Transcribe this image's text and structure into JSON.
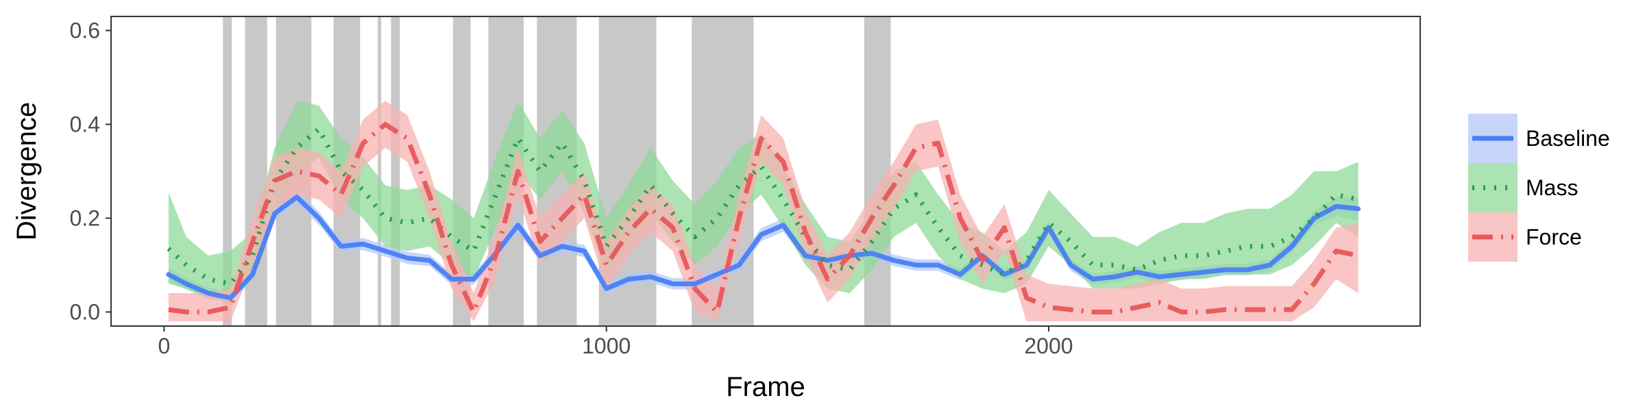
{
  "chart_data": {
    "type": "line",
    "xlabel": "Frame",
    "ylabel": "Divergence",
    "xlim": [
      -120,
      2840
    ],
    "ylim": [
      -0.03,
      0.63
    ],
    "x_ticks": [
      0,
      1000,
      2000
    ],
    "x_tick_labels": [
      "0",
      "1000",
      "2000"
    ],
    "y_ticks": [
      0.0,
      0.2,
      0.4,
      0.6
    ],
    "y_tick_labels": [
      "0.0",
      "0.2",
      "0.4",
      "0.6"
    ],
    "grid": false,
    "legend_position": "right",
    "shaded_intervals": [
      [
        133,
        153
      ],
      [
        183,
        233
      ],
      [
        253,
        333
      ],
      [
        383,
        443
      ],
      [
        483,
        491
      ],
      [
        513,
        533
      ],
      [
        653,
        693
      ],
      [
        733,
        813
      ],
      [
        843,
        933
      ],
      [
        983,
        1113
      ],
      [
        1193,
        1333
      ],
      [
        1583,
        1643
      ]
    ],
    "x": [
      10,
      50,
      100,
      150,
      200,
      250,
      300,
      350,
      400,
      450,
      500,
      550,
      600,
      650,
      700,
      750,
      800,
      850,
      900,
      950,
      1000,
      1050,
      1100,
      1150,
      1200,
      1250,
      1300,
      1350,
      1400,
      1450,
      1500,
      1550,
      1600,
      1650,
      1700,
      1750,
      1800,
      1850,
      1900,
      1950,
      2000,
      2050,
      2100,
      2150,
      2200,
      2250,
      2300,
      2350,
      2400,
      2450,
      2500,
      2550,
      2600,
      2650,
      2700
    ],
    "series": [
      {
        "name": "Baseline",
        "color": "#4a7ff5",
        "band_color": "#b4c8f5",
        "dash": "solid",
        "values": [
          0.08,
          0.06,
          0.04,
          0.03,
          0.08,
          0.21,
          0.245,
          0.2,
          0.14,
          0.145,
          0.13,
          0.115,
          0.11,
          0.07,
          0.07,
          0.125,
          0.185,
          0.12,
          0.14,
          0.13,
          0.05,
          0.07,
          0.075,
          0.06,
          0.06,
          0.08,
          0.1,
          0.165,
          0.185,
          0.12,
          0.11,
          0.12,
          0.125,
          0.11,
          0.1,
          0.1,
          0.08,
          0.12,
          0.08,
          0.1,
          0.18,
          0.1,
          0.07,
          0.075,
          0.085,
          0.075,
          0.08,
          0.085,
          0.09,
          0.09,
          0.1,
          0.14,
          0.2,
          0.225,
          0.22
        ],
        "lower": [
          0.065,
          0.048,
          0.028,
          0.02,
          0.068,
          0.196,
          0.23,
          0.186,
          0.128,
          0.132,
          0.118,
          0.102,
          0.098,
          0.058,
          0.058,
          0.112,
          0.171,
          0.108,
          0.127,
          0.117,
          0.038,
          0.058,
          0.063,
          0.048,
          0.048,
          0.068,
          0.087,
          0.151,
          0.171,
          0.108,
          0.098,
          0.108,
          0.112,
          0.098,
          0.088,
          0.088,
          0.068,
          0.108,
          0.068,
          0.088,
          0.166,
          0.088,
          0.058,
          0.063,
          0.073,
          0.063,
          0.068,
          0.073,
          0.078,
          0.078,
          0.088,
          0.127,
          0.185,
          0.205,
          0.195
        ],
        "upper": [
          0.095,
          0.072,
          0.052,
          0.04,
          0.092,
          0.224,
          0.26,
          0.214,
          0.152,
          0.158,
          0.142,
          0.128,
          0.122,
          0.082,
          0.082,
          0.138,
          0.199,
          0.132,
          0.153,
          0.143,
          0.062,
          0.082,
          0.087,
          0.072,
          0.072,
          0.092,
          0.113,
          0.179,
          0.199,
          0.132,
          0.122,
          0.132,
          0.138,
          0.122,
          0.112,
          0.112,
          0.092,
          0.132,
          0.092,
          0.112,
          0.194,
          0.112,
          0.082,
          0.087,
          0.097,
          0.087,
          0.092,
          0.097,
          0.102,
          0.102,
          0.112,
          0.153,
          0.215,
          0.245,
          0.245
        ]
      },
      {
        "name": "Mass",
        "color": "#1e9e3c",
        "band_color": "#8fd99a",
        "dash": "dotted",
        "values": [
          0.135,
          0.1,
          0.07,
          0.06,
          0.12,
          0.28,
          0.35,
          0.39,
          0.3,
          0.26,
          0.2,
          0.19,
          0.2,
          0.16,
          0.13,
          0.25,
          0.37,
          0.3,
          0.36,
          0.28,
          0.14,
          0.2,
          0.27,
          0.21,
          0.16,
          0.2,
          0.27,
          0.31,
          0.24,
          0.16,
          0.1,
          0.09,
          0.15,
          0.22,
          0.25,
          0.18,
          0.12,
          0.1,
          0.08,
          0.11,
          0.19,
          0.15,
          0.1,
          0.1,
          0.09,
          0.11,
          0.12,
          0.12,
          0.13,
          0.14,
          0.14,
          0.16,
          0.2,
          0.25,
          0.24
        ],
        "lower": [
          0.06,
          0.05,
          0.03,
          0.02,
          0.07,
          0.22,
          0.29,
          0.33,
          0.24,
          0.2,
          0.14,
          0.13,
          0.14,
          0.1,
          0.07,
          0.18,
          0.3,
          0.24,
          0.3,
          0.21,
          0.08,
          0.14,
          0.21,
          0.15,
          0.1,
          0.14,
          0.21,
          0.25,
          0.18,
          0.1,
          0.05,
          0.04,
          0.09,
          0.16,
          0.19,
          0.12,
          0.07,
          0.05,
          0.04,
          0.06,
          0.14,
          0.1,
          0.05,
          0.05,
          0.05,
          0.06,
          0.07,
          0.07,
          0.08,
          0.08,
          0.08,
          0.1,
          0.14,
          0.19,
          0.16
        ],
        "upper": [
          0.255,
          0.16,
          0.12,
          0.13,
          0.17,
          0.35,
          0.45,
          0.44,
          0.37,
          0.33,
          0.27,
          0.26,
          0.27,
          0.24,
          0.2,
          0.33,
          0.45,
          0.37,
          0.43,
          0.36,
          0.2,
          0.27,
          0.35,
          0.28,
          0.23,
          0.28,
          0.35,
          0.38,
          0.31,
          0.23,
          0.16,
          0.15,
          0.22,
          0.3,
          0.32,
          0.25,
          0.19,
          0.17,
          0.13,
          0.17,
          0.26,
          0.21,
          0.16,
          0.16,
          0.14,
          0.17,
          0.19,
          0.19,
          0.21,
          0.22,
          0.22,
          0.25,
          0.3,
          0.3,
          0.32
        ]
      },
      {
        "name": "Force",
        "color": "#e8575a",
        "band_color": "#f7b1b1",
        "dash": "dashdot",
        "values": [
          0.005,
          0.0,
          0.0,
          0.01,
          0.15,
          0.28,
          0.3,
          0.29,
          0.25,
          0.36,
          0.4,
          0.37,
          0.25,
          0.1,
          0.0,
          0.12,
          0.3,
          0.15,
          0.2,
          0.25,
          0.1,
          0.17,
          0.22,
          0.18,
          0.05,
          0.0,
          0.2,
          0.37,
          0.32,
          0.17,
          0.07,
          0.12,
          0.2,
          0.27,
          0.35,
          0.36,
          0.2,
          0.11,
          0.18,
          0.03,
          0.01,
          0.005,
          0.0,
          0.0,
          0.01,
          0.02,
          0.0,
          0.0,
          0.005,
          0.005,
          0.005,
          0.005,
          0.06,
          0.13,
          0.12
        ],
        "lower": [
          -0.02,
          -0.02,
          -0.02,
          -0.02,
          0.1,
          0.22,
          0.25,
          0.24,
          0.2,
          0.31,
          0.35,
          0.32,
          0.2,
          0.05,
          -0.02,
          0.07,
          0.25,
          0.1,
          0.15,
          0.2,
          0.05,
          0.12,
          0.17,
          0.13,
          0.0,
          -0.02,
          0.15,
          0.32,
          0.27,
          0.12,
          0.02,
          0.07,
          0.15,
          0.22,
          0.3,
          0.31,
          0.15,
          0.06,
          0.13,
          -0.02,
          -0.02,
          -0.02,
          -0.02,
          -0.02,
          -0.02,
          -0.02,
          -0.02,
          -0.02,
          -0.02,
          -0.02,
          -0.02,
          -0.02,
          0.01,
          0.07,
          0.04
        ],
        "upper": [
          0.04,
          0.04,
          0.04,
          0.05,
          0.2,
          0.33,
          0.35,
          0.34,
          0.3,
          0.41,
          0.45,
          0.42,
          0.3,
          0.15,
          0.04,
          0.17,
          0.35,
          0.2,
          0.25,
          0.3,
          0.15,
          0.22,
          0.27,
          0.23,
          0.1,
          0.05,
          0.25,
          0.42,
          0.37,
          0.22,
          0.12,
          0.17,
          0.25,
          0.32,
          0.4,
          0.41,
          0.25,
          0.16,
          0.23,
          0.08,
          0.06,
          0.055,
          0.05,
          0.05,
          0.06,
          0.07,
          0.05,
          0.05,
          0.055,
          0.055,
          0.055,
          0.055,
          0.11,
          0.18,
          0.19
        ]
      }
    ]
  }
}
